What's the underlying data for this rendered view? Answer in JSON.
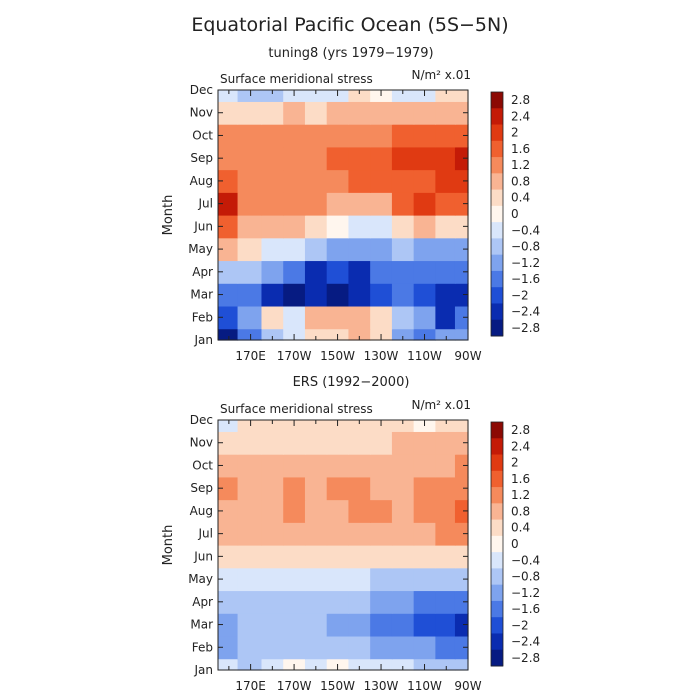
{
  "figure": {
    "title": "Equatorial Pacific Ocean (5S−5N)"
  },
  "colorbar": {
    "labels": [
      "2.8",
      "2.4",
      "2",
      "1.6",
      "1.2",
      "0.8",
      "0.4",
      "0",
      "−0.4",
      "−0.8",
      "−1.2",
      "−1.6",
      "−2",
      "−2.4",
      "−2.8"
    ],
    "colors": [
      "#8c0a04",
      "#c41b07",
      "#e03a12",
      "#f0602f",
      "#f58a5c",
      "#f9b493",
      "#fcdcc6",
      "#fff6ee",
      "#d9e6fb",
      "#adc6f5",
      "#7ea3ee",
      "#4b79e5",
      "#1f4fd6",
      "#0a2cb0",
      "#061b82"
    ]
  },
  "chart_data": [
    {
      "type": "heatmap",
      "subtitle": "tuning8 (yrs 1979−1979)",
      "variable_label": "Surface meridional stress",
      "units_label": "N/m² x.01",
      "ylabel": "Month",
      "y_categories": [
        "Jan",
        "Feb",
        "Mar",
        "Apr",
        "May",
        "Jun",
        "Jul",
        "Aug",
        "Sep",
        "Oct",
        "Nov",
        "Dec"
      ],
      "x_tick_labels": [
        "170E",
        "170W",
        "150W",
        "130W",
        "110W",
        "90W"
      ],
      "x_tick_lon": [
        170,
        190,
        210,
        230,
        250,
        270
      ],
      "xlim": [
        155,
        270
      ],
      "x_columns_lon": [
        158,
        170,
        180,
        190,
        200,
        210,
        220,
        230,
        240,
        250,
        260,
        268
      ],
      "values": [
        [
          -2.6,
          -1.8,
          -1.0,
          -0.4,
          0.2,
          0.4,
          0.6,
          0.2,
          -1.2,
          -1.6,
          -1.4,
          -1.2
        ],
        [
          -2.0,
          -1.4,
          0.4,
          -0.4,
          0.6,
          0.8,
          0.6,
          0.4,
          -0.6,
          -1.4,
          -2.2,
          -1.6
        ],
        [
          -1.6,
          -1.8,
          -2.4,
          -2.6,
          -2.4,
          -2.6,
          -2.2,
          -2.0,
          -1.8,
          -2.0,
          -2.2,
          -2.4
        ],
        [
          -0.6,
          -0.6,
          -1.2,
          -1.6,
          -2.2,
          -2.0,
          -2.2,
          -1.8,
          -1.6,
          -1.8,
          -1.6,
          -1.6
        ],
        [
          0.6,
          0.4,
          -0.2,
          -0.4,
          -0.8,
          -1.2,
          -1.4,
          -1.2,
          -1.0,
          -1.2,
          -1.2,
          -1.2
        ],
        [
          1.4,
          0.8,
          0.8,
          0.6,
          0.4,
          0.0,
          -0.2,
          -0.4,
          0.2,
          0.6,
          0.4,
          0.4
        ],
        [
          2.2,
          1.0,
          1.0,
          1.2,
          1.0,
          0.8,
          0.6,
          0.8,
          1.4,
          1.8,
          1.4,
          1.4
        ],
        [
          1.4,
          1.0,
          1.2,
          1.2,
          1.2,
          1.2,
          1.4,
          1.6,
          1.6,
          1.6,
          1.8,
          1.8
        ],
        [
          1.2,
          1.2,
          1.2,
          1.2,
          1.2,
          1.4,
          1.6,
          1.6,
          1.8,
          1.8,
          2.0,
          2.2
        ],
        [
          1.0,
          1.0,
          1.0,
          1.0,
          1.0,
          1.0,
          1.2,
          1.2,
          1.4,
          1.4,
          1.6,
          1.6
        ],
        [
          0.4,
          0.4,
          0.4,
          0.6,
          0.4,
          0.6,
          0.6,
          0.6,
          0.6,
          0.8,
          0.8,
          0.8
        ],
        [
          -0.2,
          -1.0,
          -0.8,
          -0.2,
          -0.4,
          -0.2,
          0.2,
          0.0,
          -0.4,
          -0.2,
          0.2,
          0.2
        ]
      ]
    },
    {
      "type": "heatmap",
      "subtitle": "ERS (1992−2000)",
      "variable_label": "Surface meridional stress",
      "units_label": "N/m² x.01",
      "ylabel": "Month",
      "y_categories": [
        "Jan",
        "Feb",
        "Mar",
        "Apr",
        "May",
        "Jun",
        "Jul",
        "Aug",
        "Sep",
        "Oct",
        "Nov",
        "Dec"
      ],
      "x_tick_labels": [
        "170E",
        "170W",
        "150W",
        "130W",
        "110W",
        "90W"
      ],
      "x_tick_lon": [
        170,
        190,
        210,
        230,
        250,
        270
      ],
      "xlim": [
        155,
        270
      ],
      "x_columns_lon": [
        158,
        170,
        180,
        190,
        200,
        210,
        220,
        230,
        240,
        250,
        260,
        268
      ],
      "values": [
        [
          -0.4,
          -0.6,
          -0.2,
          0.0,
          -0.2,
          0.0,
          -0.2,
          -0.4,
          -0.4,
          -0.6,
          -0.6,
          -0.8
        ],
        [
          -1.4,
          -0.8,
          -0.8,
          -0.8,
          -0.8,
          -0.8,
          -1.0,
          -1.2,
          -1.4,
          -1.4,
          -1.6,
          -1.6
        ],
        [
          -1.4,
          -1.0,
          -1.0,
          -1.0,
          -1.0,
          -1.2,
          -1.4,
          -1.6,
          -1.8,
          -2.0,
          -2.0,
          -2.2
        ],
        [
          -0.6,
          -0.8,
          -0.8,
          -0.8,
          -0.8,
          -1.0,
          -1.0,
          -1.2,
          -1.4,
          -1.6,
          -1.6,
          -1.6
        ],
        [
          -0.2,
          -0.4,
          -0.4,
          -0.4,
          -0.4,
          -0.4,
          -0.4,
          -0.6,
          -0.8,
          -0.8,
          -0.8,
          -0.8
        ],
        [
          0.4,
          0.4,
          0.2,
          0.4,
          0.4,
          0.2,
          0.4,
          0.2,
          0.2,
          0.4,
          0.4,
          0.4
        ],
        [
          0.6,
          0.6,
          0.6,
          0.8,
          0.6,
          0.8,
          0.8,
          0.8,
          0.6,
          0.8,
          1.0,
          1.2
        ],
        [
          0.8,
          0.8,
          0.8,
          1.0,
          0.8,
          0.8,
          1.0,
          1.0,
          0.8,
          1.0,
          1.2,
          1.4
        ],
        [
          1.2,
          0.8,
          0.8,
          1.0,
          0.8,
          1.0,
          1.0,
          0.8,
          0.8,
          1.0,
          1.0,
          1.2
        ],
        [
          0.6,
          0.6,
          0.8,
          0.8,
          0.6,
          0.8,
          0.8,
          0.6,
          0.8,
          0.8,
          0.8,
          1.0
        ],
        [
          0.4,
          0.4,
          0.2,
          0.4,
          0.2,
          0.4,
          0.4,
          0.4,
          0.6,
          0.6,
          0.6,
          0.6
        ],
        [
          -0.2,
          0.2,
          0.2,
          0.2,
          0.2,
          0.2,
          0.2,
          0.2,
          0.2,
          0.0,
          0.2,
          0.2
        ]
      ]
    }
  ]
}
